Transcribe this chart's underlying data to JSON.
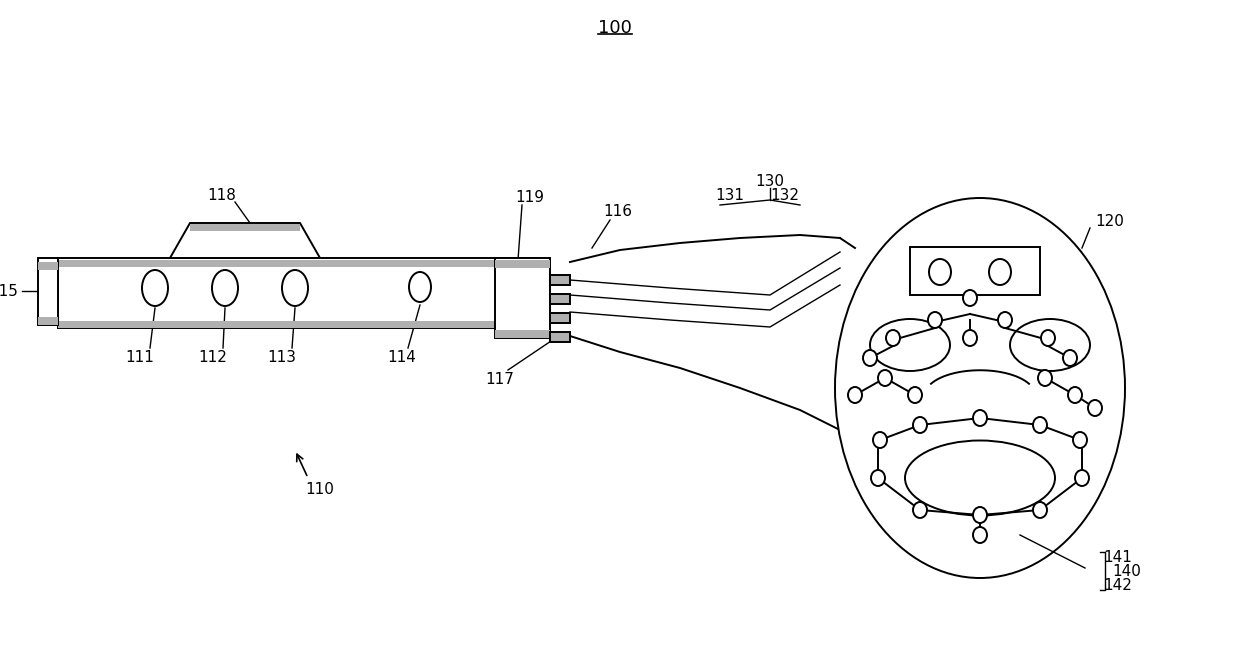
{
  "title": "100",
  "bg_color": "#ffffff",
  "line_color": "#000000",
  "gray_fill": "#b0b0b0",
  "figsize": [
    12.4,
    6.59
  ],
  "dpi": 100
}
